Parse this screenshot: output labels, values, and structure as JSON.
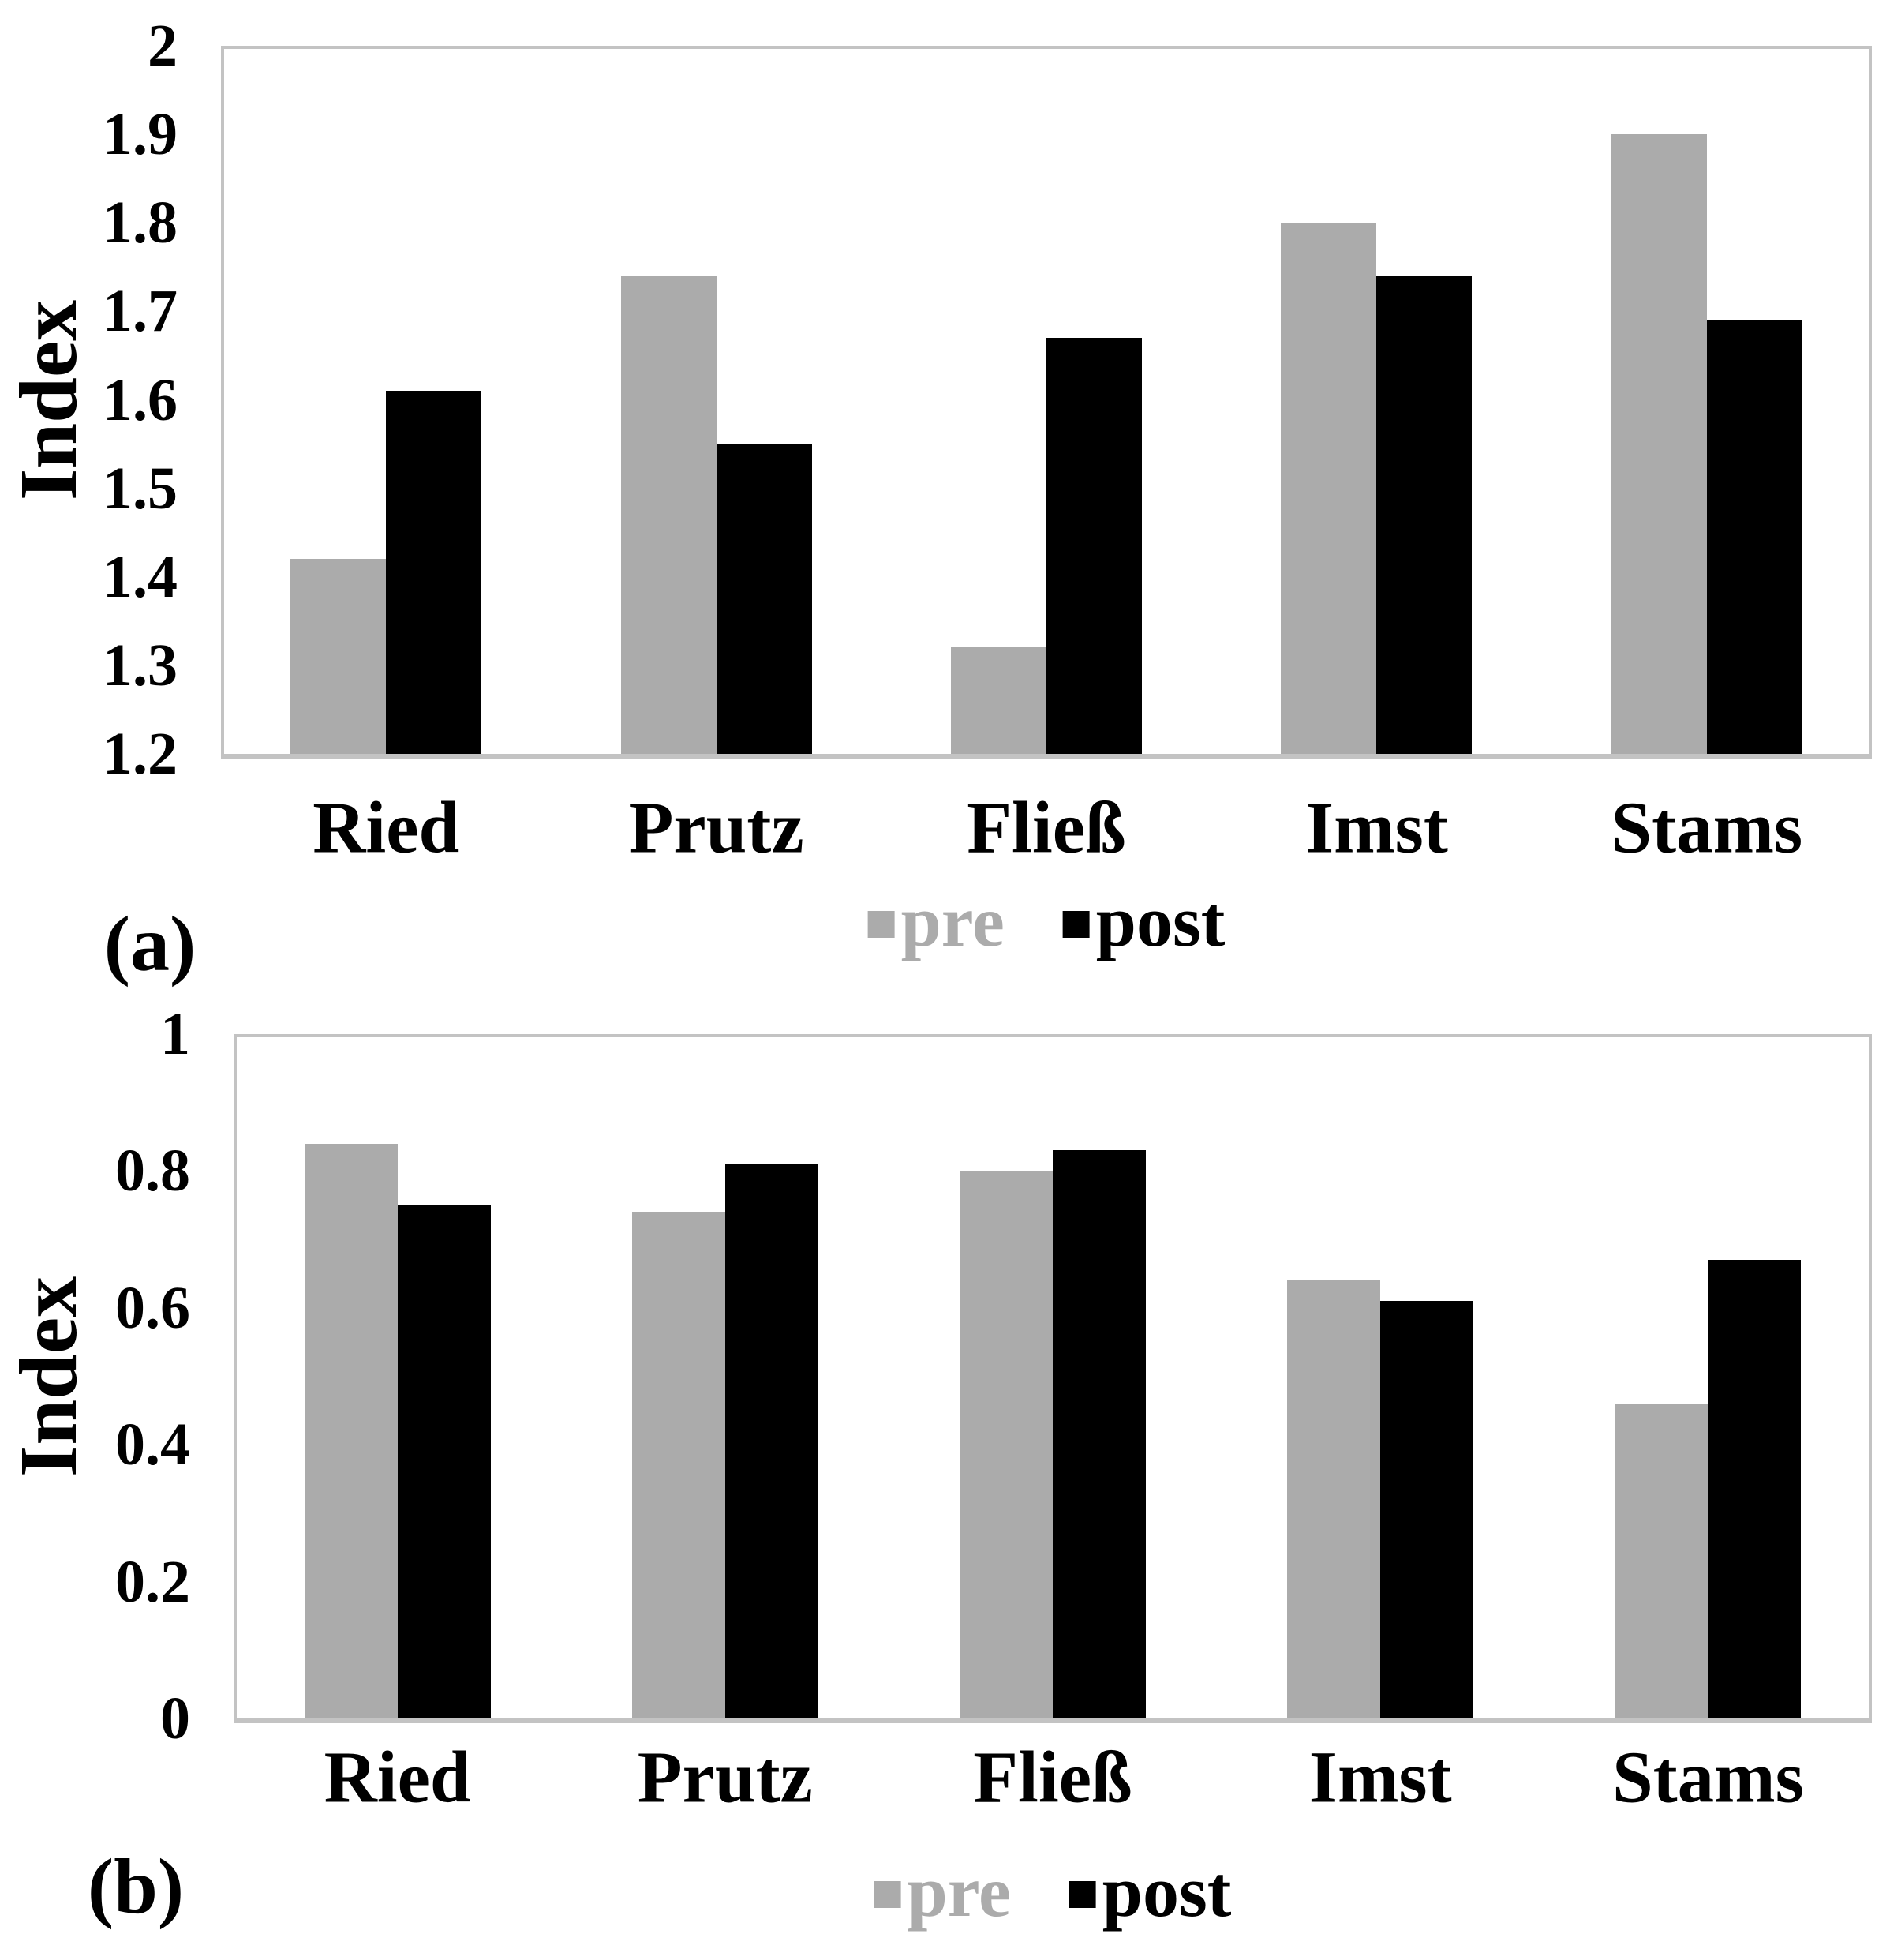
{
  "chart_data": [
    {
      "panel_label": "(a)",
      "type": "bar",
      "title": "",
      "ylabel": "Index",
      "xlabel": "",
      "categories": [
        "Ried",
        "Prutz",
        "Fließ",
        "Imst",
        "Stams"
      ],
      "series": [
        {
          "name": "pre",
          "color": "#ABABAB",
          "values": [
            1.42,
            1.74,
            1.32,
            1.8,
            1.9
          ]
        },
        {
          "name": "post",
          "color": "#000000",
          "values": [
            1.61,
            1.55,
            1.67,
            1.74,
            1.69
          ]
        }
      ],
      "ylim": [
        1.2,
        2
      ],
      "ytick_values": [
        2,
        1.9,
        1.8,
        1.7,
        1.6,
        1.5,
        1.4,
        1.3,
        1.2
      ],
      "ytick_labels": [
        "2",
        "1.9",
        "1.8",
        "1.7",
        "1.6",
        "1.5",
        "1.4",
        "1.3",
        "1.2"
      ],
      "grid": false,
      "legend_position": "bottom-center"
    },
    {
      "panel_label": "(b)",
      "type": "bar",
      "title": "",
      "ylabel": "Index",
      "xlabel": "",
      "categories": [
        "Ried",
        "Prutz",
        "Fließ",
        "Imst",
        "Stams"
      ],
      "series": [
        {
          "name": "pre",
          "color": "#ABABAB",
          "values": [
            0.84,
            0.74,
            0.8,
            0.64,
            0.46
          ]
        },
        {
          "name": "post",
          "color": "#000000",
          "values": [
            0.75,
            0.81,
            0.83,
            0.61,
            0.67
          ]
        }
      ],
      "ylim": [
        0,
        1
      ],
      "ytick_values": [
        1,
        0.8,
        0.6,
        0.4,
        0.2,
        0
      ],
      "ytick_labels": [
        "1",
        "0.8",
        "0.6",
        "0.4",
        "0.2",
        "0"
      ],
      "grid": false,
      "legend_position": "bottom-center"
    }
  ]
}
